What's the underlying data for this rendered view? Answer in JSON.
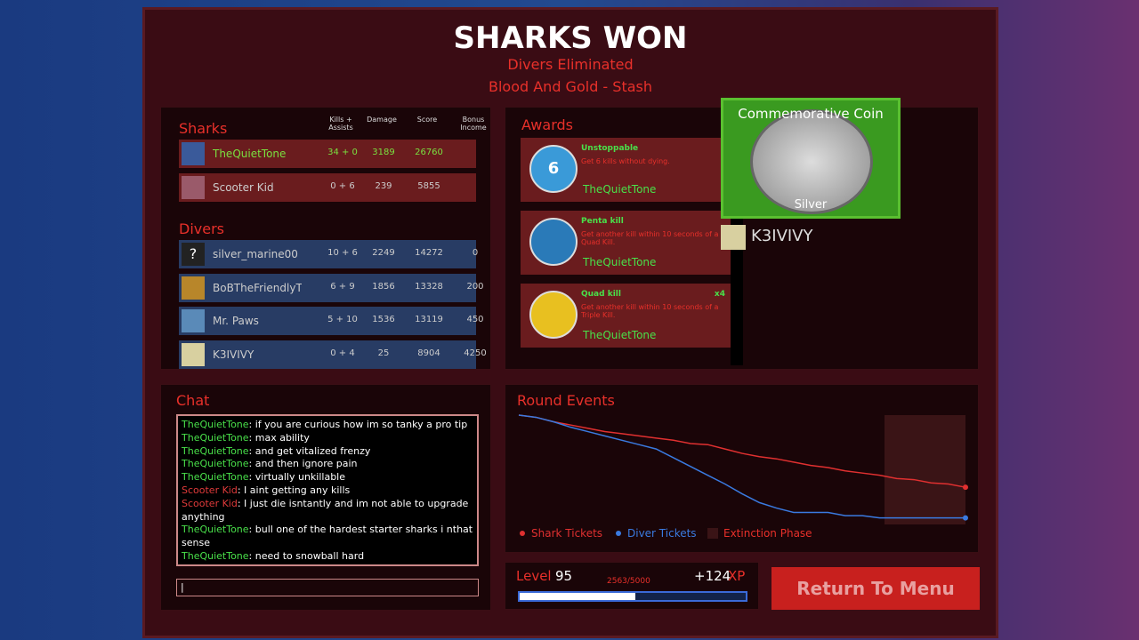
{
  "header": {
    "title": "SHARKS WON",
    "subtitle": "Divers Eliminated",
    "map": "Blood And Gold - Stash"
  },
  "scoreboard": {
    "columns": [
      "Kills + Assists",
      "Damage",
      "Score",
      "Bonus Income"
    ],
    "sharks": {
      "title": "Sharks",
      "rows": [
        {
          "name": "TheQuietTone",
          "ka": "34 + 0",
          "damage": 3189,
          "score": 26760,
          "avatar": "#3a5a9a",
          "highlight": true
        },
        {
          "name": "Scooter Kid",
          "ka": "0 + 6",
          "damage": 239,
          "score": 5855,
          "avatar": "#9a5a6a"
        }
      ]
    },
    "divers": {
      "title": "Divers",
      "rows": [
        {
          "name": "silver_marine00",
          "ka": "10 + 6",
          "damage": 2249,
          "score": 14272,
          "bonus": 0,
          "avatar": "#222222",
          "avatar_text": "?"
        },
        {
          "name": "BoBTheFriendlyTr",
          "ka": "6 + 9",
          "damage": 1856,
          "score": 13328,
          "bonus": 200,
          "avatar": "#b8862a"
        },
        {
          "name": "Mr. Paws",
          "ka": "5 + 10",
          "damage": 1536,
          "score": 13119,
          "bonus": 450,
          "avatar": "#5a8ab8"
        },
        {
          "name": "K3IVIVY",
          "ka": "0 + 4",
          "damage": 25,
          "score": 8904,
          "bonus": 4250,
          "avatar": "#d8d0a0"
        }
      ]
    }
  },
  "awards": {
    "title": "Awards",
    "items": [
      {
        "name": "Unstoppable",
        "description": "Get 6 kills without dying.",
        "player": "TheQuietTone",
        "icon": "#3a9ad8",
        "icon_text": "6"
      },
      {
        "name": "Penta kill",
        "description": "Get another kill within 10 seconds of a Quad Kill.",
        "player": "TheQuietTone",
        "icon": "#2a7ab8"
      },
      {
        "name": "Quad kill",
        "description": "Get another kill within 10 seconds of a Triple Kill.",
        "player": "TheQuietTone",
        "count": "x4",
        "icon": "#e8c020"
      }
    ],
    "popup": {
      "title": "Commemorative Coin",
      "tier": "Silver",
      "player": "K3IVIVY"
    }
  },
  "chat": {
    "title": "Chat",
    "input": "|",
    "messages": [
      {
        "user": "TheQuietTone",
        "color": "#49e04a",
        "text": ": if you are curious how im so tanky a pro tip"
      },
      {
        "user": "TheQuietTone",
        "color": "#49e04a",
        "text": ": max ability"
      },
      {
        "user": "TheQuietTone",
        "color": "#49e04a",
        "text": ": and get vitalized frenzy"
      },
      {
        "user": "TheQuietTone",
        "color": "#49e04a",
        "text": ": and then ignore pain"
      },
      {
        "user": "TheQuietTone",
        "color": "#49e04a",
        "text": ": virtually unkillable"
      },
      {
        "user": "Scooter Kid",
        "color": "#e03a3a",
        "text": ": I aint getting any kills"
      },
      {
        "user": "Scooter Kid",
        "color": "#e03a3a",
        "text": ": I just die isntantly and im not able to upgrade anything"
      },
      {
        "user": "TheQuietTone",
        "color": "#49e04a",
        "text": ": bull one of the hardest starter sharks i nthat sense"
      },
      {
        "user": "TheQuietTone",
        "color": "#49e04a",
        "text": ": need to snowball hard"
      }
    ]
  },
  "round_events": {
    "title": "Round Events",
    "ylim": [
      0,
      100
    ],
    "series": [
      {
        "name": "Shark Tickets",
        "color": "#e03030",
        "values": [
          100,
          98,
          94,
          91,
          88,
          85,
          83,
          81,
          79,
          77,
          74,
          73,
          69,
          65,
          62,
          60,
          57,
          54,
          52,
          49,
          47,
          45,
          42,
          41,
          38,
          37,
          34
        ]
      },
      {
        "name": "Diver Tickets",
        "color": "#3a7ae0",
        "values": [
          100,
          98,
          94,
          89,
          85,
          81,
          77,
          73,
          69,
          61,
          53,
          45,
          37,
          28,
          20,
          15,
          11,
          11,
          11,
          8,
          8,
          6,
          6,
          6,
          6,
          6,
          6
        ]
      }
    ],
    "phase": {
      "name": "Extinction Phase",
      "color": "#3a1416"
    }
  },
  "level": {
    "label": "Level",
    "value": 95,
    "progress": "2563/5000",
    "xp": "+124",
    "xp_unit": "XP"
  },
  "button": "Return To Menu"
}
